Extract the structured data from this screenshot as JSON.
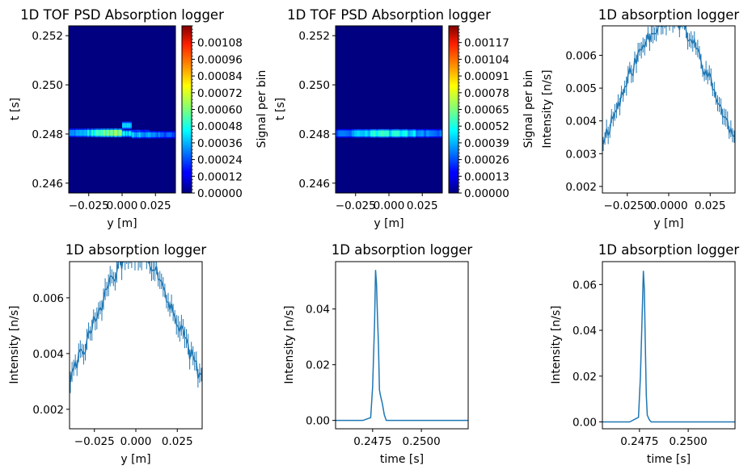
{
  "chart_data": [
    {
      "type": "heatmap",
      "title": "1D TOF PSD Absorption logger",
      "xlabel": "y [m]",
      "ylabel": "t [s]",
      "colorbar_label": "Signal per bin",
      "xlim": [
        -0.04,
        0.04
      ],
      "ylim": [
        0.2456,
        0.2524
      ],
      "x_ticks": [
        {
          "value": -0.025,
          "label": "−0.025"
        },
        {
          "value": 0.0,
          "label": "0.000"
        },
        {
          "value": 0.025,
          "label": "0.025"
        }
      ],
      "y_ticks": [
        {
          "value": 0.246,
          "label": "0.246"
        },
        {
          "value": 0.248,
          "label": "0.248"
        },
        {
          "value": 0.25,
          "label": "0.250"
        },
        {
          "value": 0.252,
          "label": "0.252"
        }
      ],
      "colorbar_ticks": [
        "0.00000",
        "0.00012",
        "0.00024",
        "0.00036",
        "0.00048",
        "0.00060",
        "0.00072",
        "0.00084",
        "0.00096",
        "0.00108"
      ],
      "colorbar_range": [
        0,
        0.0012
      ],
      "bands": [
        {
          "x0": -0.04,
          "x1": 0.0,
          "t0": 0.24792,
          "t1": 0.24817,
          "peak": 0.0006
        },
        {
          "x0": 0.0,
          "x1": 0.02,
          "t0": 0.24792,
          "t1": 0.24812,
          "peak": 0.0004
        },
        {
          "x0": 0.0,
          "x1": 0.007,
          "t0": 0.24825,
          "t1": 0.24845,
          "peak": 0.0004
        },
        {
          "x0": 0.007,
          "x1": 0.04,
          "t0": 0.24787,
          "t1": 0.24807,
          "peak": 0.0004
        }
      ]
    },
    {
      "type": "heatmap",
      "title": "1D TOF PSD Absorption logger",
      "xlabel": "y [m]",
      "ylabel": "t [s]",
      "colorbar_label": "Signal per bin",
      "xlim": [
        -0.04,
        0.04
      ],
      "ylim": [
        0.2456,
        0.2524
      ],
      "x_ticks": [
        {
          "value": -0.025,
          "label": "−0.025"
        },
        {
          "value": 0.0,
          "label": "0.000"
        },
        {
          "value": 0.025,
          "label": "0.025"
        }
      ],
      "y_ticks": [
        {
          "value": 0.246,
          "label": "0.246"
        },
        {
          "value": 0.248,
          "label": "0.248"
        },
        {
          "value": 0.25,
          "label": "0.250"
        },
        {
          "value": 0.252,
          "label": "0.252"
        }
      ],
      "colorbar_ticks": [
        "0.00000",
        "0.00013",
        "0.00026",
        "0.00039",
        "0.00052",
        "0.00065",
        "0.00078",
        "0.00091",
        "0.00104",
        "0.00117"
      ],
      "colorbar_range": [
        0,
        0.0013
      ],
      "bands": [
        {
          "x0": -0.04,
          "x1": 0.04,
          "t0": 0.2479,
          "t1": 0.24815,
          "peak": 0.0005
        }
      ]
    },
    {
      "type": "line",
      "title": "1D absorption logger",
      "xlabel": "y [m]",
      "ylabel": "Intensity [n/s]",
      "xlim": [
        -0.04,
        0.04
      ],
      "ylim": [
        0.0018,
        0.0069
      ],
      "x_ticks": [
        {
          "value": -0.025,
          "label": "−0.0250"
        },
        {
          "value": 0.0,
          "label": "0.0000"
        },
        {
          "value": 0.025,
          "label": "0.025"
        }
      ],
      "y_ticks": [
        {
          "value": 0.002,
          "label": "0.002"
        },
        {
          "value": 0.003,
          "label": "0.003"
        },
        {
          "value": 0.004,
          "label": "0.004"
        },
        {
          "value": 0.005,
          "label": "0.005"
        },
        {
          "value": 0.006,
          "label": "0.006"
        }
      ],
      "profile": {
        "center": 0.0,
        "peak": 0.0059,
        "width": 0.04,
        "base": 0.0,
        "noise": 0.00025,
        "points": 80,
        "errbar": 0.0003
      },
      "seed": 11
    },
    {
      "type": "line",
      "title": "1D absorption logger",
      "xlabel": "y [m]",
      "ylabel": "Intensity [n/s]",
      "xlim": [
        -0.04,
        0.04
      ],
      "ylim": [
        0.0013,
        0.0073
      ],
      "x_ticks": [
        {
          "value": -0.025,
          "label": "−0.025"
        },
        {
          "value": 0.0,
          "label": "0.000"
        },
        {
          "value": 0.025,
          "label": "0.025"
        }
      ],
      "y_ticks": [
        {
          "value": 0.002,
          "label": "0.002"
        },
        {
          "value": 0.004,
          "label": "0.004"
        },
        {
          "value": 0.006,
          "label": "0.006"
        }
      ],
      "profile": {
        "center": 0.0,
        "peak": 0.0064,
        "width": 0.036,
        "base": 0.0,
        "noise": 0.0003,
        "points": 80,
        "errbar": 0.0004
      },
      "seed": 29
    },
    {
      "type": "line",
      "title": "1D absorption logger",
      "xlabel": "time [s]",
      "ylabel": "Intensity [n/s]",
      "xlim": [
        0.2456,
        0.2524
      ],
      "ylim": [
        -0.003,
        0.057
      ],
      "x_ticks": [
        {
          "value": 0.2475,
          "label": "0.2475"
        },
        {
          "value": 0.25,
          "label": "0.2500"
        }
      ],
      "y_ticks": [
        {
          "value": 0.0,
          "label": "0.00"
        },
        {
          "value": 0.02,
          "label": "0.02"
        },
        {
          "value": 0.04,
          "label": "0.04"
        }
      ],
      "x": [
        0.2456,
        0.247,
        0.2474,
        0.2475,
        0.2476,
        0.24765,
        0.2477,
        0.24775,
        0.2478,
        0.24785,
        0.2479,
        0.248,
        0.2481,
        0.2482,
        0.25,
        0.2524
      ],
      "y": [
        0.0,
        0.0,
        0.001,
        0.012,
        0.035,
        0.054,
        0.049,
        0.037,
        0.027,
        0.011,
        0.009,
        0.006,
        0.002,
        0.0,
        0.0,
        0.0
      ]
    },
    {
      "type": "line",
      "title": "1D absorption logger",
      "xlabel": "time [s]",
      "ylabel": "Intensity [n/s]",
      "xlim": [
        0.2456,
        0.2524
      ],
      "ylim": [
        -0.003,
        0.07
      ],
      "x_ticks": [
        {
          "value": 0.2475,
          "label": "0.2475"
        },
        {
          "value": 0.25,
          "label": "0.2500"
        }
      ],
      "y_ticks": [
        {
          "value": 0.0,
          "label": "0.00"
        },
        {
          "value": 0.02,
          "label": "0.02"
        },
        {
          "value": 0.04,
          "label": "0.04"
        },
        {
          "value": 0.06,
          "label": "0.06"
        }
      ],
      "x": [
        0.2456,
        0.247,
        0.24745,
        0.24755,
        0.24765,
        0.2477,
        0.24775,
        0.2478,
        0.24785,
        0.2479,
        0.248,
        0.2481,
        0.25,
        0.2524
      ],
      "y": [
        0.0,
        0.0,
        0.002,
        0.02,
        0.05,
        0.066,
        0.058,
        0.034,
        0.012,
        0.003,
        0.001,
        0.0,
        0.0,
        0.0
      ]
    }
  ],
  "colors": {
    "line": "#1f77b4",
    "frame": "#000000"
  }
}
